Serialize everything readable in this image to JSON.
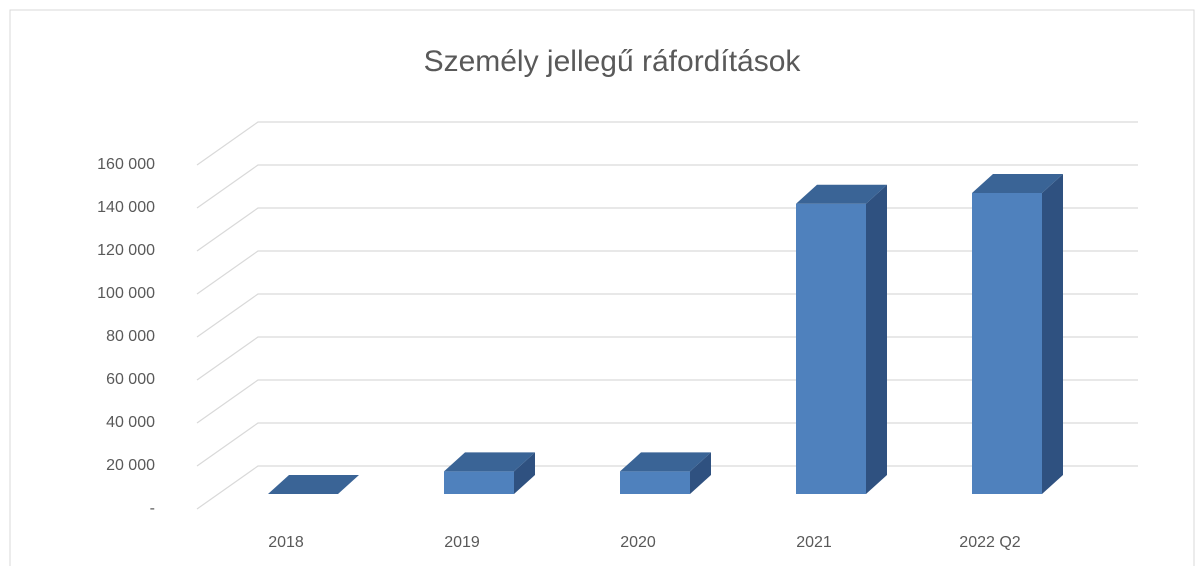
{
  "chart_data": {
    "type": "bar3d",
    "title": "Személy jellegű ráfordítások",
    "categories": [
      "2018",
      "2019",
      "2020",
      "2021",
      "2022 Q2"
    ],
    "values": [
      0,
      10500,
      10500,
      135000,
      140000
    ],
    "color": "#4f81bd",
    "ylim": [
      0,
      160000
    ],
    "yticks": [
      {
        "value": 0,
        "label": "-"
      },
      {
        "value": 20000,
        "label": "20 000"
      },
      {
        "value": 40000,
        "label": "40 000"
      },
      {
        "value": 60000,
        "label": "60 000"
      },
      {
        "value": 80000,
        "label": "80 000"
      },
      {
        "value": 100000,
        "label": "100 000"
      },
      {
        "value": 120000,
        "label": "120 000"
      },
      {
        "value": 140000,
        "label": "140 000"
      },
      {
        "value": 160000,
        "label": "160 000"
      }
    ],
    "grid": true
  }
}
